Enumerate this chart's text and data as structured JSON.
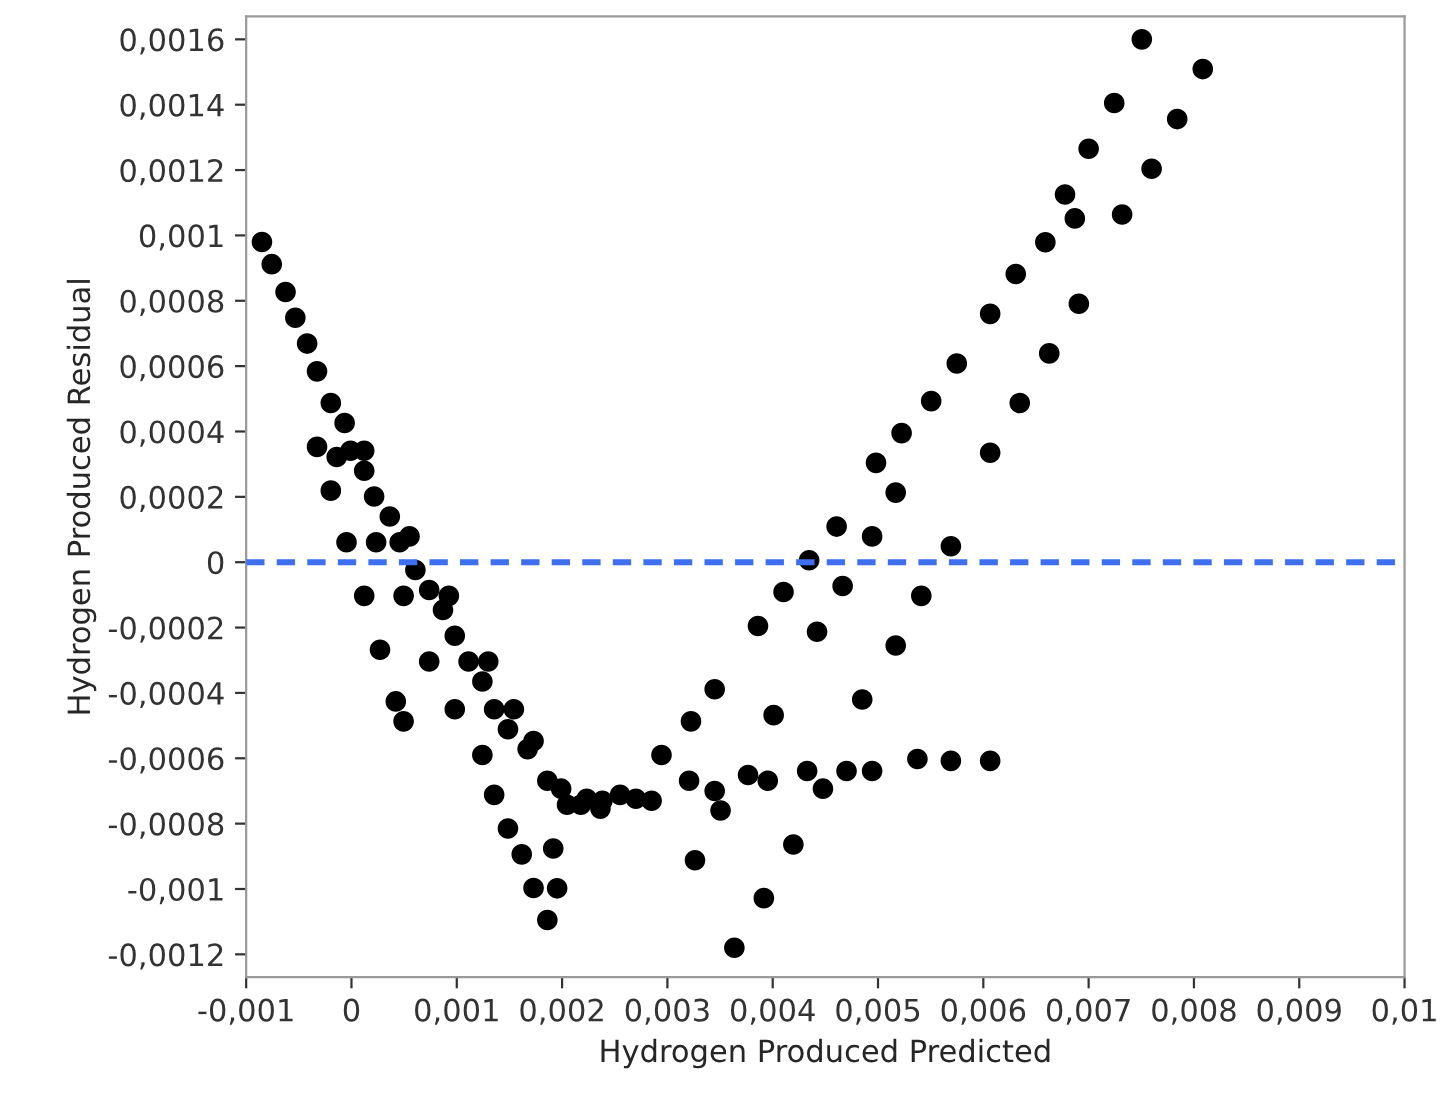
{
  "chart_data": {
    "type": "scatter",
    "xlabel": "Hydrogen Produced Predicted",
    "ylabel": "Hydrogen Produced Residual",
    "xlim": [
      -0.001,
      0.01
    ],
    "ylim": [
      -0.00127,
      0.00167
    ],
    "xticks": [
      {
        "value": -0.001,
        "label": "-0,001"
      },
      {
        "value": 0,
        "label": "0"
      },
      {
        "value": 0.001,
        "label": "0,001"
      },
      {
        "value": 0.002,
        "label": "0,002"
      },
      {
        "value": 0.003,
        "label": "0,003"
      },
      {
        "value": 0.004,
        "label": "0,004"
      },
      {
        "value": 0.005,
        "label": "0,005"
      },
      {
        "value": 0.006,
        "label": "0,006"
      },
      {
        "value": 0.007,
        "label": "0,007"
      },
      {
        "value": 0.008,
        "label": "0,008"
      },
      {
        "value": 0.009,
        "label": "0,009"
      },
      {
        "value": 0.01,
        "label": "0,01"
      }
    ],
    "yticks": [
      {
        "value": -0.0012,
        "label": "-0,0012"
      },
      {
        "value": -0.001,
        "label": "-0,001"
      },
      {
        "value": -0.0008,
        "label": "-0,0008"
      },
      {
        "value": -0.0006,
        "label": "-0,0006"
      },
      {
        "value": -0.0004,
        "label": "-0,0004"
      },
      {
        "value": -0.0002,
        "label": "-0,0002"
      },
      {
        "value": 0,
        "label": "0"
      },
      {
        "value": 0.0002,
        "label": "0,0002"
      },
      {
        "value": 0.0004,
        "label": "0,0004"
      },
      {
        "value": 0.0006,
        "label": "0,0006"
      },
      {
        "value": 0.0008,
        "label": "0,0008"
      },
      {
        "value": 0.001,
        "label": "0,001"
      },
      {
        "value": 0.0012,
        "label": "0,0012"
      },
      {
        "value": 0.0014,
        "label": "0,0014"
      },
      {
        "value": 0.0016,
        "label": "0,0016"
      }
    ],
    "grid": false,
    "legend": false,
    "marker": "circle",
    "ref_lines": [
      {
        "axis": "y",
        "value": 0,
        "color": "#3d6ff0",
        "line_style": "dashed"
      }
    ],
    "series": [
      {
        "color": "#000000",
        "x": [
          -0.00085,
          -0.000757,
          -0.000626,
          -0.000533,
          -0.000421,
          -0.000327,
          -0.000196,
          -6.5e-05,
          -9e-06,
          0.000121,
          0.000215,
          0.000364,
          0.000458,
          0.000607,
          0.000738,
          0.000869,
          0.000981,
          0.001112,
          0.001243,
          0.001355,
          0.001486,
          0.001673,
          0.00186,
          -0.00014,
          0.000234,
          0.000495,
          0.000738,
          0.000981,
          0.001243,
          0.001355,
          0.001486,
          0.001617,
          0.001729,
          0.00186,
          0.001916,
          0.001953,
          0.000121,
          0.000551,
          0.000925,
          0.001299,
          0.001542,
          0.001729,
          0.001991,
          0.002178,
          0.002364,
          0.002551,
          -0.000327,
          -0.000196,
          -4.7e-05,
          0.000121,
          0.000271,
          0.000421,
          0.000495,
          0.002047,
          0.002234,
          0.002383,
          0.002701,
          0.00285,
          0.003206,
          0.003449,
          0.003766,
          0.003953,
          0.004327,
          0.004477,
          0.004701,
          0.004944,
          0.005374,
          0.005692,
          0.006065,
          0.003262,
          0.003636,
          0.003916,
          0.004196,
          0.003505,
          0.002944,
          0.003224,
          0.003449,
          0.00386,
          0.004103,
          0.004346,
          0.004607,
          0.004981,
          0.005168,
          0.005224,
          0.005505,
          0.005748,
          0.006065,
          0.006308,
          0.006589,
          0.006776,
          0.006869,
          0.007,
          0.007243,
          0.007505,
          0.004009,
          0.004421,
          0.004664,
          0.004944,
          0.005168,
          0.005411,
          0.005692,
          0.00485,
          0.006065,
          0.006346,
          0.006626,
          0.006907,
          0.007318,
          0.007598,
          0.007841,
          0.008084
        ],
        "values": [
          0.00098,
          0.000912,
          0.000827,
          0.000748,
          0.000669,
          0.000584,
          0.000487,
          0.000426,
          0.000341,
          0.00028,
          0.000201,
          0.00014,
          6.1e-05,
          -2.4e-05,
          -8.5e-05,
          -0.000146,
          -0.000225,
          -0.000304,
          -0.000365,
          -0.00045,
          -0.000511,
          -0.000572,
          -0.000669,
          0.000322,
          6.1e-05,
          -0.000103,
          -0.000304,
          -0.00045,
          -0.00059,
          -0.000712,
          -0.000815,
          -0.000894,
          -0.000997,
          -0.001095,
          -0.000876,
          -0.000998,
          0.000341,
          7.9e-05,
          -0.000103,
          -0.000304,
          -0.00045,
          -0.000547,
          -0.000693,
          -0.000742,
          -0.000754,
          -0.000712,
          0.000353,
          0.000219,
          6.1e-05,
          -0.000103,
          -0.000268,
          -0.000426,
          -0.000487,
          -0.000742,
          -0.000724,
          -0.00073,
          -0.000724,
          -0.00073,
          -0.000669,
          -0.0007,
          -0.000651,
          -0.000669,
          -0.000639,
          -0.000693,
          -0.000639,
          -0.000639,
          -0.000602,
          -0.000608,
          -0.000608,
          -0.000912,
          -0.00118,
          -0.001028,
          -0.000864,
          -0.00076,
          -0.00059,
          -0.000487,
          -0.000389,
          -0.000195,
          -9.1e-05,
          6e-06,
          0.000109,
          0.000304,
          0.000213,
          0.000395,
          0.000493,
          0.000608,
          0.00076,
          0.000882,
          0.000979,
          0.001125,
          0.001052,
          0.001265,
          0.001405,
          0.0016,
          -0.000468,
          -0.000213,
          -7.3e-05,
          7.9e-05,
          -0.000255,
          -0.000103,
          4.9e-05,
          -0.00042,
          0.000335,
          0.000487,
          0.000639,
          0.000791,
          0.001064,
          0.001204,
          0.001356,
          0.001509
        ]
      }
    ]
  }
}
